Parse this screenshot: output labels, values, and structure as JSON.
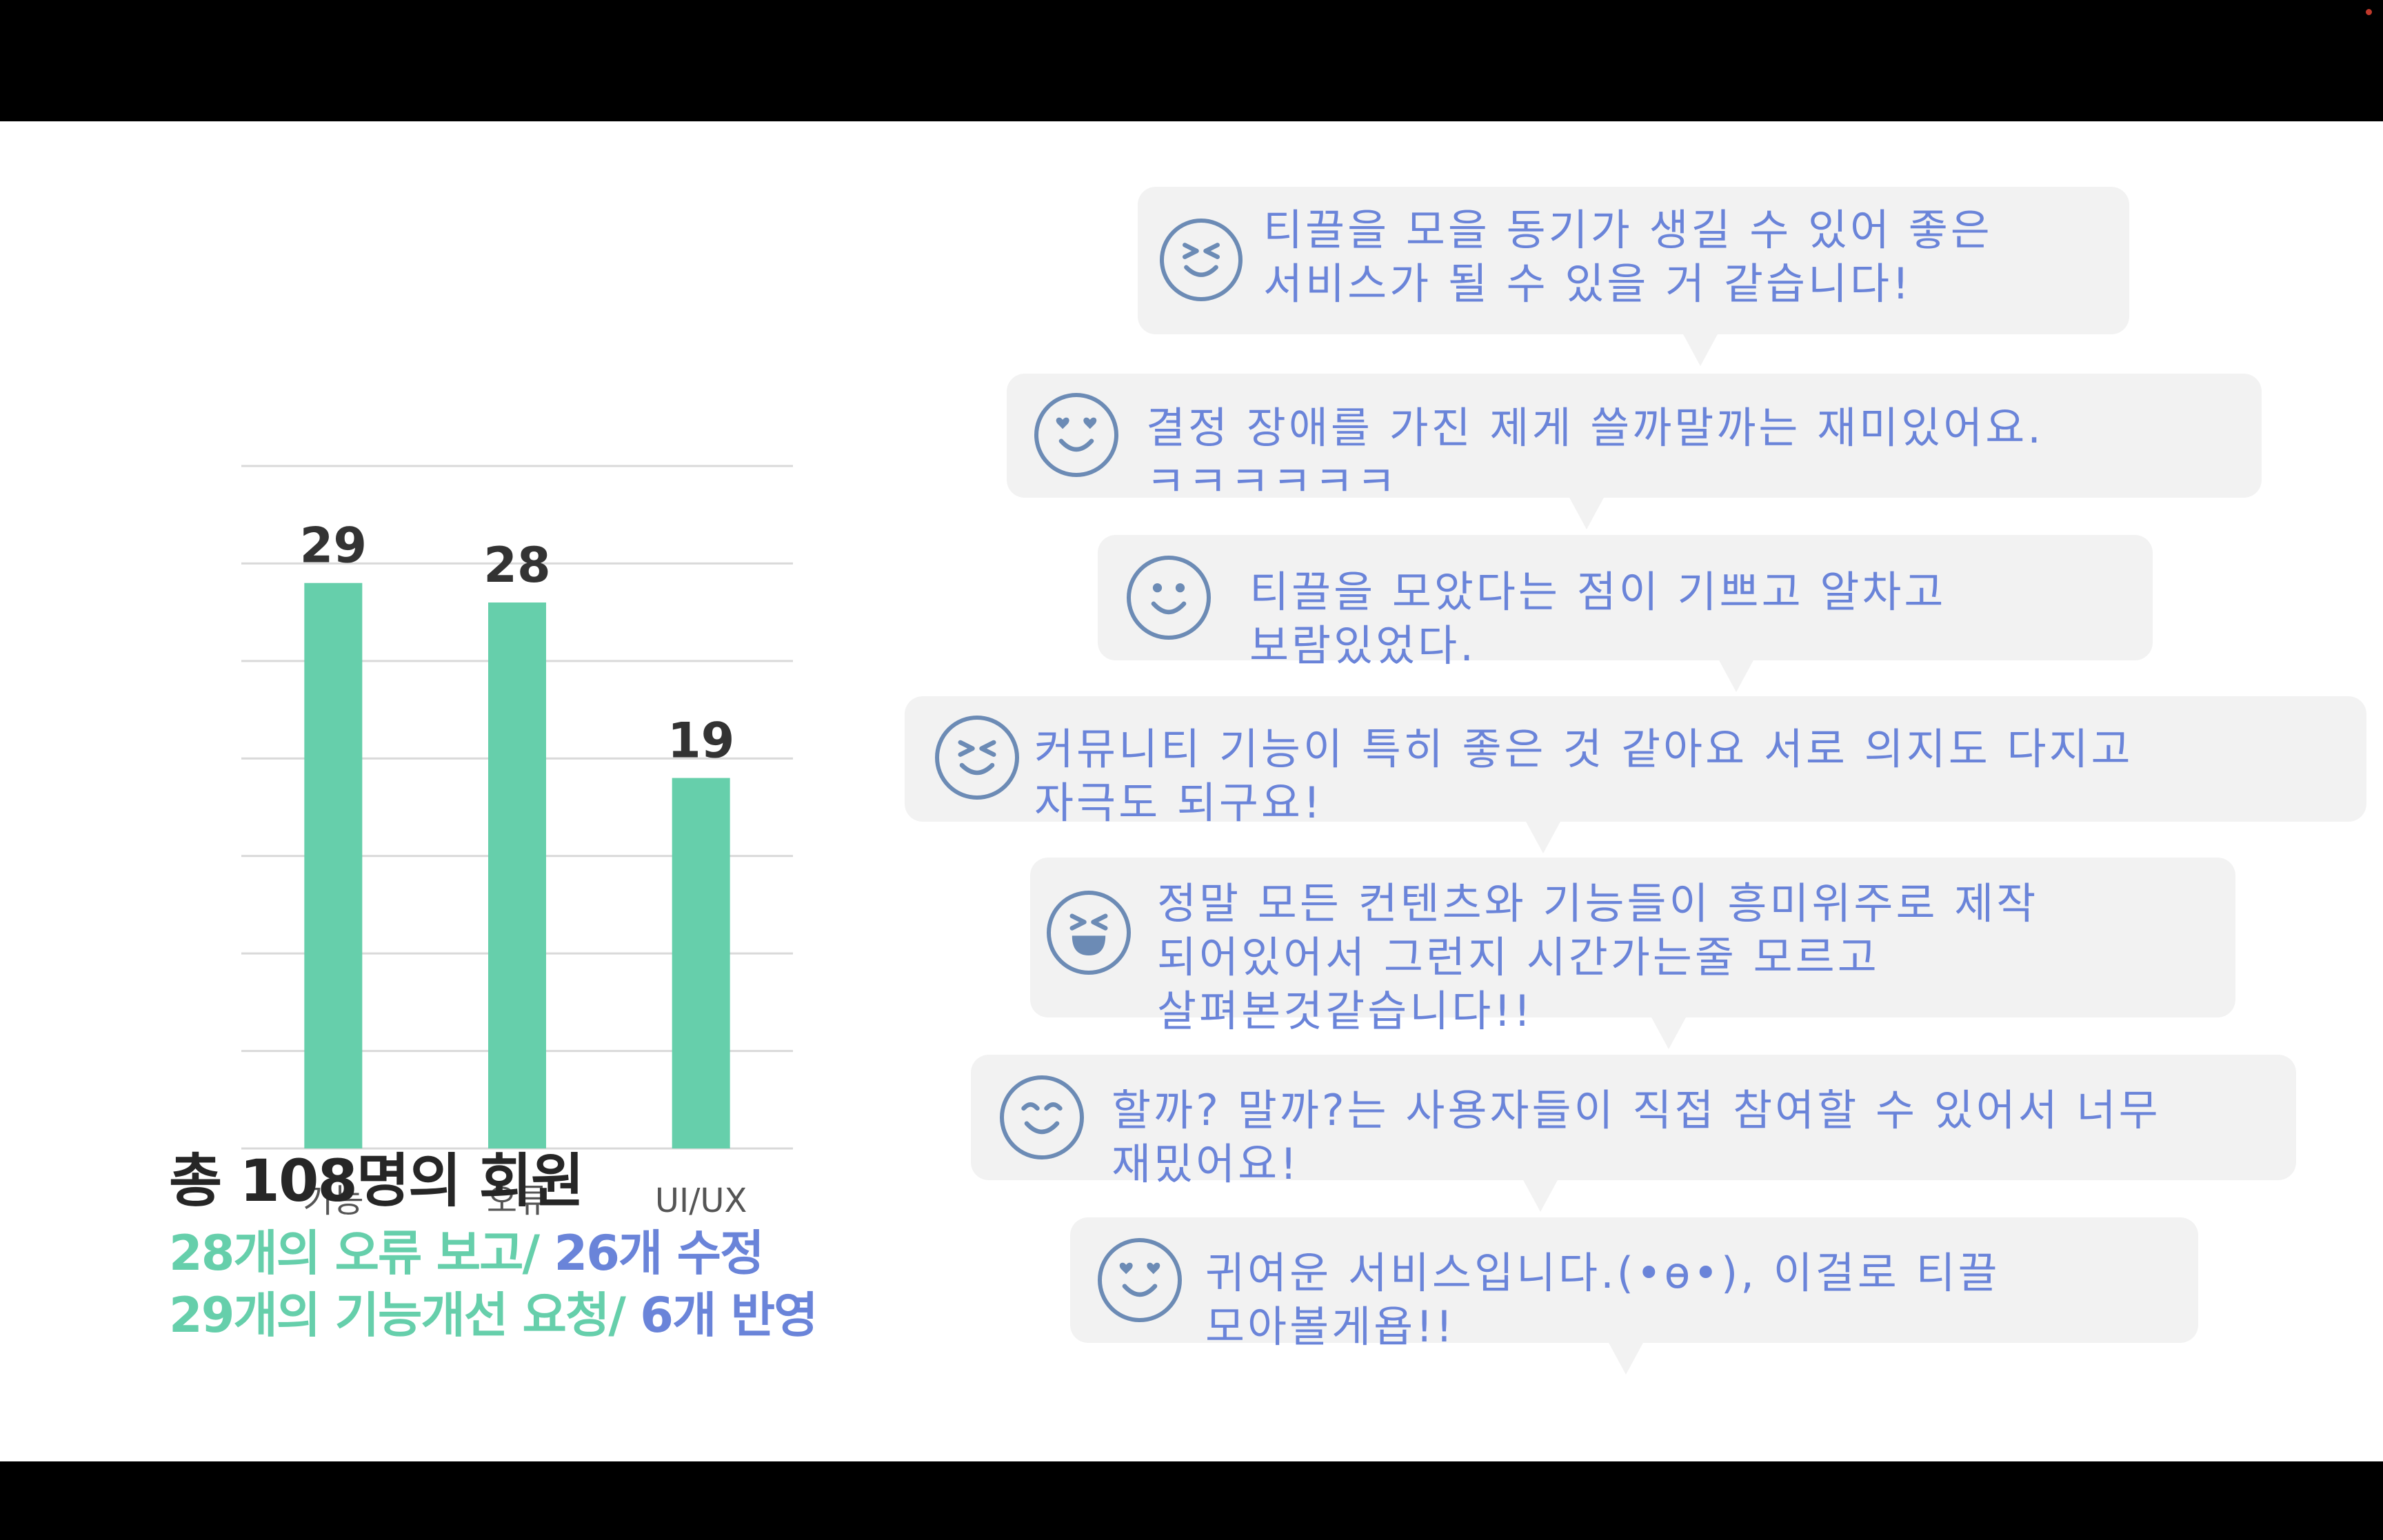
{
  "chart_data": {
    "type": "bar",
    "categories": [
      "기능",
      "오류",
      "UI/UX"
    ],
    "values": [
      29,
      28,
      19
    ],
    "ylim": [
      0,
      35
    ],
    "grid": true,
    "colors": {
      "bar": "#66cfab"
    }
  },
  "summary": {
    "total": "총 108명의 회원",
    "line1_a": "28개의 오류 보고/ ",
    "line1_b": "26개 수정",
    "line2_a": "29개의 기능개선 요청/ ",
    "line2_b": "6개 반영"
  },
  "comments": [
    {
      "icon": "squint-smile-icon",
      "lines": [
        "티끌을 모을 동기가 생길 수 있어 좋은",
        "서비스가 될 수 있을 거 같습니다!"
      ]
    },
    {
      "icon": "heart-eyes-icon",
      "lines": [
        "결정 장애를 가진 제게 쓸까말까는 재미있어요.",
        "ㅋㅋㅋㅋㅋㅋ"
      ]
    },
    {
      "icon": "smile-icon",
      "lines": [
        "티끌을 모았다는 점이 기쁘고 알차고",
        "보람있었다."
      ]
    },
    {
      "icon": "squint-smile-icon",
      "lines": [
        "커뮤니티 기능이 특히 좋은 것 같아요 서로 의지도 다지고",
        "자극도 되구요!"
      ]
    },
    {
      "icon": "laughing-icon",
      "lines": [
        "정말 모든 컨텐츠와 기능들이 흥미위주로 제작",
        "되어있어서 그런지 시간가는줄 모르고",
        "살펴본것같습니다!!"
      ]
    },
    {
      "icon": "smile-icon",
      "lines": [
        "할까? 말까?는 사용자들이 직접 참여할 수 있어서 너무",
        "재밌어요!"
      ]
    },
    {
      "icon": "heart-eyes-icon",
      "lines": [
        "귀여운 서비스입니다.(•ө•), 이걸로 티끌",
        "모아볼게욥!!"
      ]
    }
  ],
  "colors": {
    "accent_green": "#66cfab",
    "accent_blue": "#6a84d9",
    "bubble": "#f2f2f2",
    "face": "#6c8bb5"
  }
}
